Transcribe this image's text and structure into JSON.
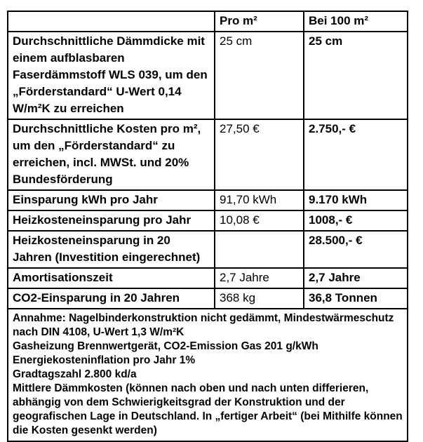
{
  "colors": {
    "background": "#ffffff",
    "text": "#000000",
    "border": "#000000"
  },
  "table": {
    "header": {
      "col_label": "",
      "col_pro": "Pro m²",
      "col_bei": "Bei 100 m²"
    },
    "rows": [
      {
        "label": "Durchschnittliche Dämmdicke mit einem aufblasbaren Faserdämmstoff WLS 039, um den „Förderstandard“ U-Wert 0,14 W/m²K zu erreichen",
        "pro": "25 cm",
        "bei": "25 cm"
      },
      {
        "label": "Durchschnittliche Kosten pro m², um den „Förderstandard“ zu erreichen, incl. MWSt. und 20% Bundesförderung",
        "pro": "27,50 €",
        "bei": "2.750,- €"
      },
      {
        "label": "Einsparung kWh pro Jahr",
        "pro": "91,70 kWh",
        "bei": "9.170 kWh"
      },
      {
        "label": "Heizkosteneinsparung pro Jahr",
        "pro": "10,08 €",
        "bei": "1008,- €"
      },
      {
        "label": "Heizkosteneinsparung in 20 Jahren (Investition eingerechnet)",
        "pro": "",
        "bei": "28.500,- €"
      },
      {
        "label": "Amortisationszeit",
        "pro": "2,7 Jahre",
        "bei": "2,7 Jahre"
      },
      {
        "label": "CO2-Einsparung in 20 Jahren",
        "pro": "368 kg",
        "bei": "36,8 Tonnen"
      }
    ],
    "footnotes": [
      "Annahme: Nagelbinderkonstruktion nicht gedämmt, Mindestwärmeschutz nach DIN 4108, U-Wert 1,3 W/m²K",
      "Gasheizung Brennwertgerät, CO2-Emission Gas 201 g/kWh",
      "Energiekosteninflation pro Jahr 1%",
      "Gradtagszahl 2.800 kd/a",
      "Mittlere Dämmkosten (können nach oben und nach unten differieren, abhängig von dem Schwierigkeitsgrad der Konstruktion und der geografischen Lage in Deutschland. In „fertiger Arbeit“ (bei Mithilfe können die Kosten gesenkt werden)"
    ]
  }
}
